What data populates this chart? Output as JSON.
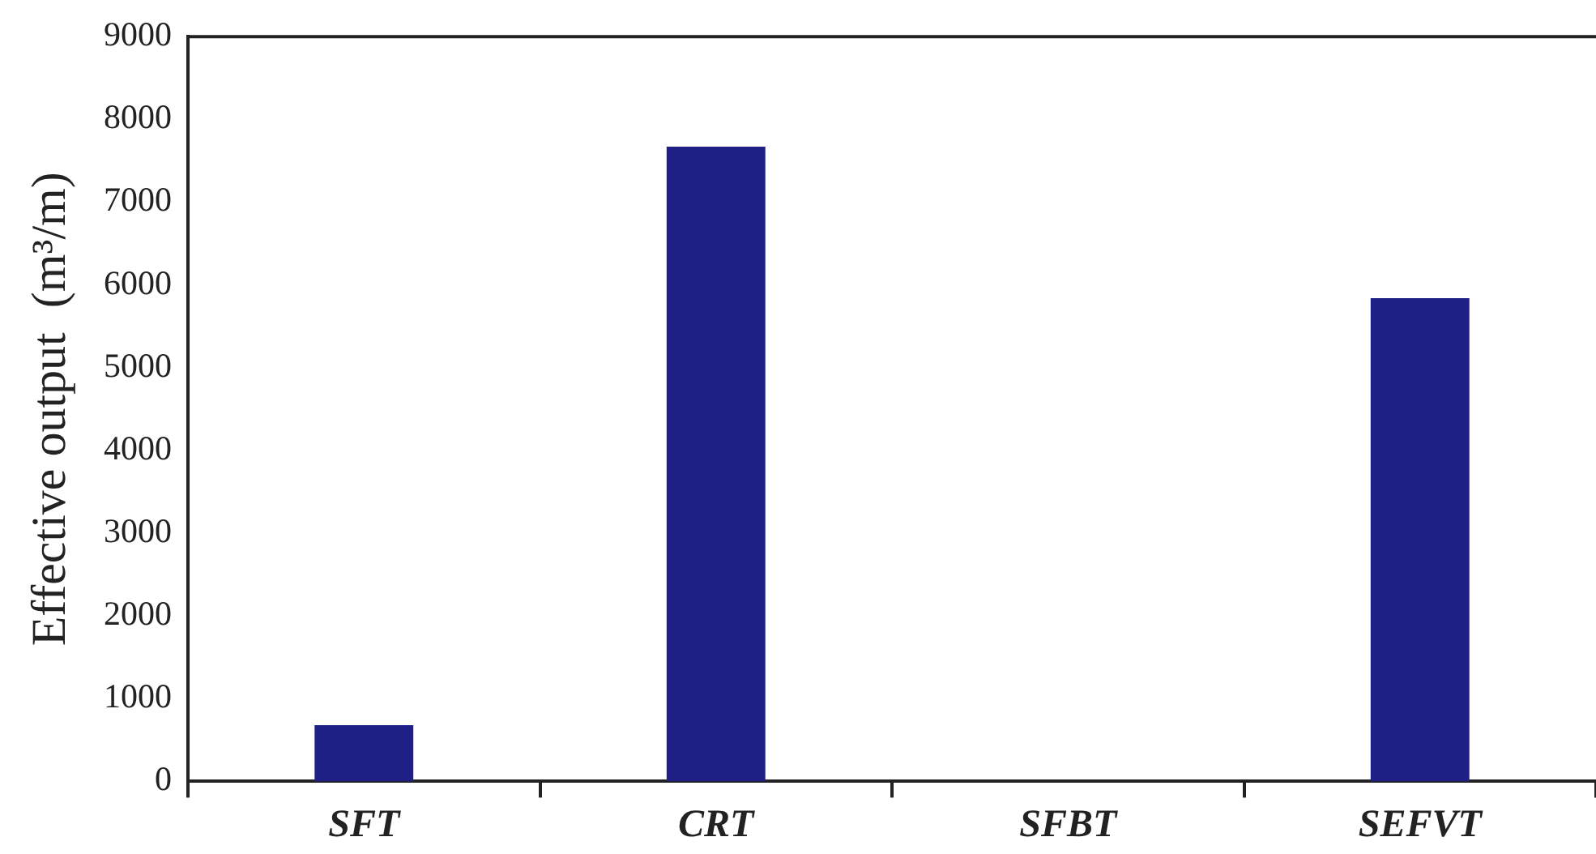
{
  "chart_data": {
    "type": "bar",
    "ylabel": "Effective output  (m³/m)",
    "categories": [
      "SFT",
      "CRT",
      "SFBT",
      "SEFVT"
    ],
    "values": [
      680,
      7670,
      0,
      5840
    ],
    "color": "#1e2085",
    "ylim": [
      0,
      9000
    ],
    "yticks": [
      0,
      1000,
      2000,
      3000,
      4000,
      5000,
      6000,
      7000,
      8000,
      9000
    ],
    "grid": false,
    "legend": false
  }
}
